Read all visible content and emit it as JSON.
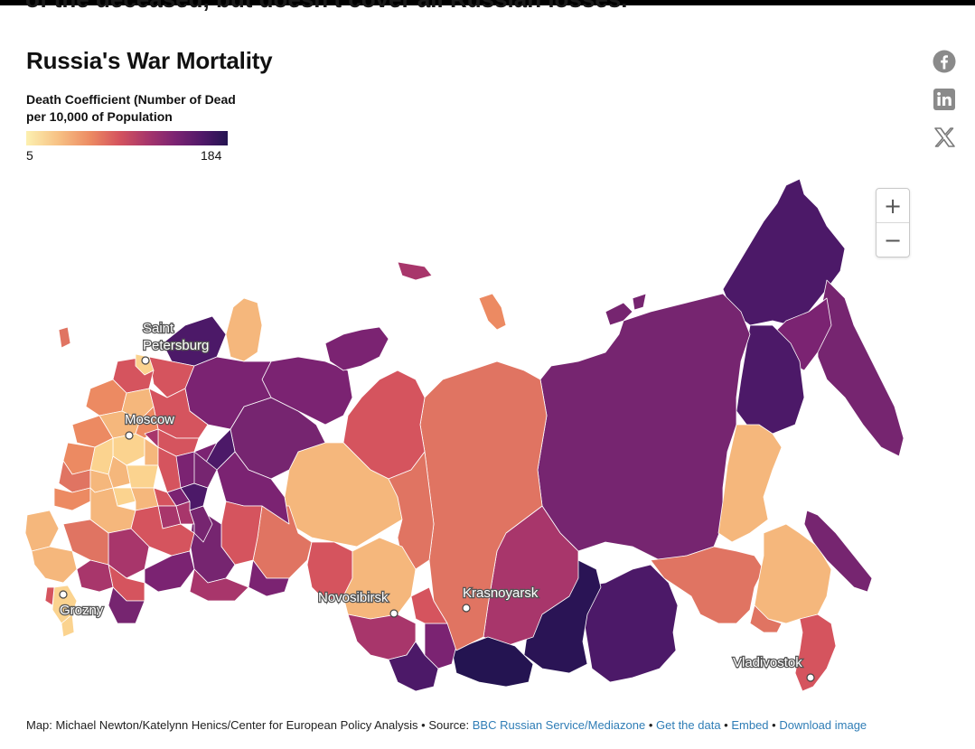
{
  "header": {
    "cut_text": "of the deceased, but doesn't cover all Russian losses."
  },
  "map": {
    "title": "Russia's War Mortality",
    "legend": {
      "title": "Death Coefficient (Number of Dead per 10,000 of Population",
      "min_label": "5",
      "max_label": "184",
      "min_value": 5,
      "max_value": 184,
      "color_low": "#fcf0b0",
      "color_high": "#241451"
    },
    "cities": {
      "saint_petersburg_1": "Saint",
      "saint_petersburg_2": "Petersburg",
      "moscow": "Moscow",
      "grozny": "Grozny",
      "novosibirsk": "Novosibirsk",
      "krasnoyarsk": "Krasnoyarsk",
      "vladivostok": "Vladivostok"
    },
    "zoom": {
      "in": "+",
      "out": "−"
    }
  },
  "share": {
    "facebook_icon": "facebook-icon",
    "linkedin_icon": "linkedin-icon",
    "x_icon": "x-icon"
  },
  "footer": {
    "credit": "Map: Michael Newton/Katelynn Henics/Center for European Policy Analysis • Source: ",
    "source_link": "BBC Russian Service/Mediazone",
    "sep1": " • ",
    "get_data": "Get the data",
    "sep2": " • ",
    "embed": "Embed",
    "sep3": "  • ",
    "download": "Download image"
  },
  "colors": {
    "link": "#2f7db6",
    "pale": "#f5b77c",
    "light": "#fbd38f",
    "orange": "#e07462",
    "red": "#c24b62",
    "magenta": "#9c2e6a",
    "purple": "#762570",
    "dark_purple": "#4c1968",
    "darkest": "#2a1455"
  }
}
